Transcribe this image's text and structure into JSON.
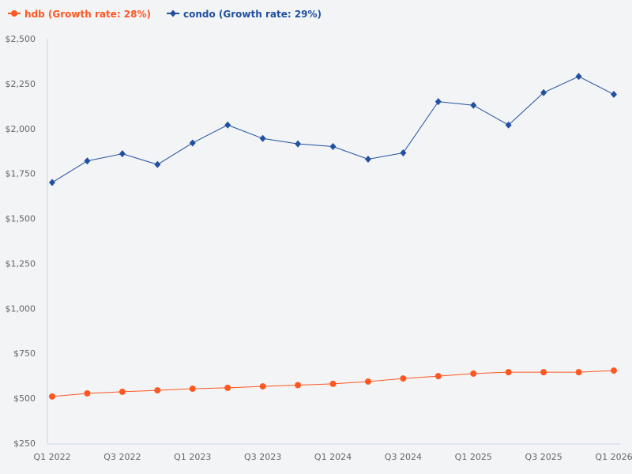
{
  "chart_data": {
    "type": "line",
    "title": "",
    "xlabel": "",
    "ylabel": "",
    "ylim": [
      250,
      2500
    ],
    "grid": false,
    "legend_position": "top-left",
    "y_ticks": [
      "$250",
      "$500",
      "$750",
      "$1,000",
      "$1,250",
      "$1,500",
      "$1,750",
      "$2,000",
      "$2,250",
      "$2,500"
    ],
    "y_tick_values": [
      250,
      500,
      750,
      1000,
      1250,
      1500,
      1750,
      2000,
      2250,
      2500
    ],
    "x": [
      "Q1 2022",
      "Q2 2022",
      "Q3 2022",
      "Q4 2022",
      "Q1 2023",
      "Q2 2023",
      "Q3 2023",
      "Q4 2023",
      "Q1 2024",
      "Q2 2024",
      "Q3 2024",
      "Q4 2024",
      "Q1 2025",
      "Q2 2025",
      "Q3 2025",
      "Q4 2025",
      "Q1 2026"
    ],
    "x_tick_labels": [
      "Q1 2022",
      "Q3 2022",
      "Q1 2023",
      "Q3 2023",
      "Q1 2024",
      "Q3 2024",
      "Q1 2025",
      "Q3 2025",
      "Q1 2026"
    ],
    "series": [
      {
        "name": "hdb (Growth rate: 28%)",
        "color": "#ff5722",
        "marker": "circle",
        "values": [
          510,
          527,
          536,
          544,
          553,
          558,
          566,
          573,
          580,
          593,
          610,
          623,
          637,
          645,
          645,
          645,
          654
        ]
      },
      {
        "name": "condo (Growth rate: 29%)",
        "color": "#2150a0",
        "marker": "diamond",
        "values": [
          1700,
          1820,
          1860,
          1800,
          1920,
          2020,
          1945,
          1915,
          1900,
          1830,
          1865,
          2150,
          2130,
          2020,
          2200,
          2290,
          2190
        ]
      }
    ]
  }
}
